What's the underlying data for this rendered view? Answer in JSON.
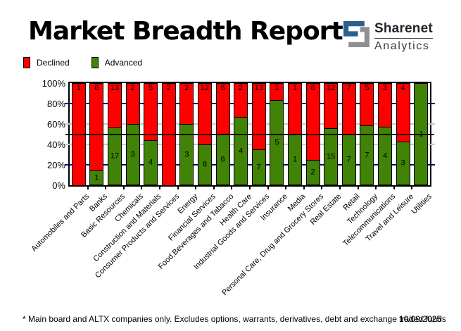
{
  "header": {
    "title": "Market Breadth Report",
    "logo": {
      "line1": "Sharenet",
      "line2": "Analytics",
      "mark_blue": "#2D5F8D",
      "mark_gray": "#909094"
    }
  },
  "legend": [
    {
      "label": "Declined",
      "color": "#FF0000"
    },
    {
      "label": "Advanced",
      "color": "#418306"
    }
  ],
  "chart_data": {
    "type": "bar",
    "variant": "stacked-percent-column",
    "title": "Market Breadth Report",
    "xlabel": "",
    "ylabel": "",
    "ylim": [
      0,
      100
    ],
    "y_ticks": [
      {
        "label": "100%",
        "pct": 100
      },
      {
        "label": "80%",
        "pct": 80
      },
      {
        "label": "60%",
        "pct": 60
      },
      {
        "label": "40%",
        "pct": 40
      },
      {
        "label": "20%",
        "pct": 20
      },
      {
        "label": "0%",
        "pct": 0
      }
    ],
    "grid_lines": [
      {
        "pct": 80,
        "color": "#000080"
      },
      {
        "pct": 60,
        "color": "#C9C9C9"
      },
      {
        "pct": 40,
        "color": "#C9C9C9"
      },
      {
        "pct": 20,
        "color": "#000080"
      }
    ],
    "reference_line_pct": 50,
    "legend_position": "top-left",
    "categories": [
      "Automobiles and Parts",
      "Banks",
      "Basic Resources",
      "Chemicals",
      "Construction and Materials",
      "Consumer Products and Services",
      "Energy",
      "Financial Services",
      "Food,Beverages and Tabacco",
      "Health Care",
      "Industrial Goods and Services",
      "Insurance",
      "Media",
      "Personal Care, Drug and Grocery Stores",
      "Real Estate",
      "Retail",
      "Technology",
      "Telecommunications",
      "Travel and Leisure",
      "Utilities"
    ],
    "series": [
      {
        "name": "Declined",
        "color": "#FF0000",
        "values": [
          1,
          6,
          13,
          2,
          5,
          2,
          2,
          12,
          6,
          2,
          13,
          1,
          1,
          6,
          12,
          7,
          5,
          3,
          4,
          0
        ]
      },
      {
        "name": "Advanced",
        "color": "#418306",
        "values": [
          0,
          1,
          17,
          3,
          4,
          0,
          3,
          8,
          6,
          4,
          7,
          5,
          1,
          2,
          15,
          7,
          7,
          4,
          3,
          1
        ]
      }
    ]
  },
  "footer": {
    "note": "* Main board and ALTX companies only. Excludes options, warrants, derivatives, debt and exchange traded funds",
    "date": "10/09/2025"
  }
}
